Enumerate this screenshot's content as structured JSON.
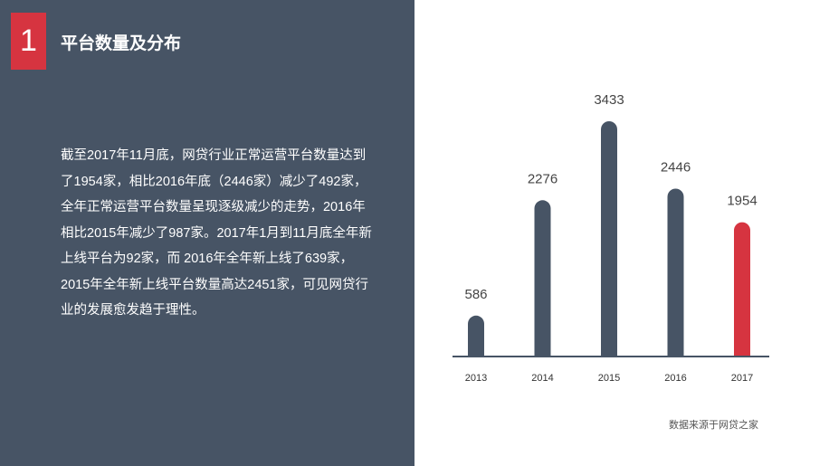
{
  "section": {
    "number": "1",
    "title": "平台数量及分布"
  },
  "body_text": "截至2017年11月底，网贷行业正常运营平台数量达到了1954家，相比2016年底（2446家）减少了492家，全年正常运营平台数量呈现逐级减少的走势，2016年相比2015年减少了987家。2017年1月到11月底全年新上线平台为92家，而 2016年全年新上线了639家，2015年全年新上线平台数量高达2451家，可见网贷行业的发展愈发趋于理性。",
  "source": "数据来源于网贷之家",
  "colors": {
    "panel": "#475465",
    "accent": "#d63440",
    "bar": "#475465"
  },
  "chart_data": {
    "type": "bar",
    "categories": [
      "2013",
      "2014",
      "2015",
      "2016",
      "2017"
    ],
    "values": [
      586,
      2276,
      3433,
      2446,
      1954
    ],
    "highlight": "2017",
    "ylim": [
      0,
      3433
    ],
    "grid": false
  }
}
